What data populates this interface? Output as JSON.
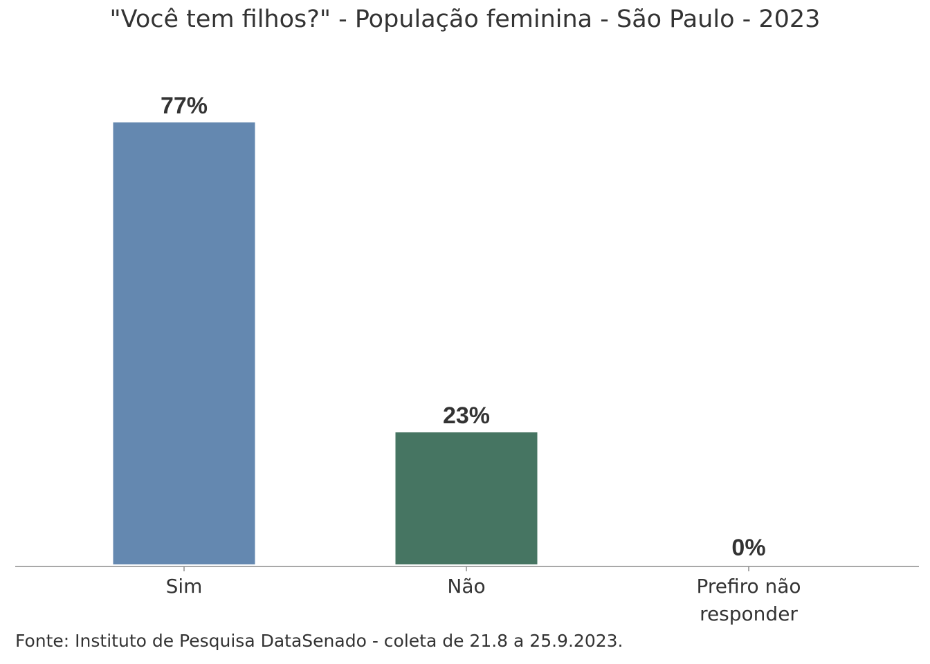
{
  "title": "\"Você tem filhos?\" - População feminina - São Paulo - 2023",
  "source": "Fonte: Instituto de Pesquisa DataSenado - coleta de 21.8 a 25.9.2023.",
  "chart_data": {
    "type": "bar",
    "title": "\"Você tem filhos?\" - População feminina - São Paulo - 2023",
    "categories": [
      [
        "Sim"
      ],
      [
        "Não"
      ],
      [
        "Prefiro não",
        "responder"
      ]
    ],
    "values": [
      77,
      23,
      0
    ],
    "value_labels": [
      "77%",
      "23%",
      "0%"
    ],
    "colors": [
      "#6488b0",
      "#467562",
      "#467562"
    ],
    "xlabel": "",
    "ylabel": "",
    "ylim": [
      0,
      77
    ],
    "grid": false,
    "legend": "none"
  }
}
